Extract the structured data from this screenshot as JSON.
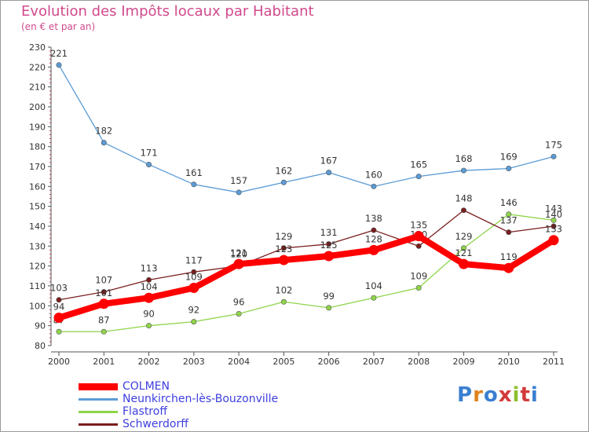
{
  "title": "Evolution des Impôts locaux par Habitant",
  "subtitle": "(en € et par an)",
  "logo_text": "Proxiti",
  "chart_data": {
    "type": "line",
    "title": "Evolution des Impôts locaux par Habitant",
    "subtitle": "(en € et par an)",
    "xlabel": "",
    "ylabel": "",
    "ylim": [
      80,
      230
    ],
    "yticks": [
      80,
      90,
      100,
      110,
      120,
      130,
      140,
      150,
      160,
      170,
      180,
      190,
      200,
      210,
      220,
      230
    ],
    "grid": false,
    "legend_position": "bottom-left",
    "x": [
      "2000",
      "2001",
      "2002",
      "2003",
      "2004",
      "2005",
      "2006",
      "2007",
      "2008",
      "2009",
      "2010",
      "2011"
    ],
    "series": [
      {
        "name": "COLMEN",
        "color": "#ff0000",
        "values": [
          94,
          101,
          104,
          109,
          121,
          123,
          125,
          128,
          135,
          121,
          119,
          133
        ]
      },
      {
        "name": "Neunkirchen-lès-Bouzonville",
        "color": "#5b9bd5",
        "values": [
          221,
          182,
          171,
          161,
          157,
          162,
          167,
          160,
          165,
          168,
          169,
          175
        ]
      },
      {
        "name": "Flastroff",
        "color": "#8fd44a",
        "values": [
          87,
          87,
          90,
          92,
          96,
          102,
          99,
          104,
          109,
          129,
          146,
          143
        ]
      },
      {
        "name": "Schwerdorff",
        "color": "#7a1e1e",
        "values": [
          103,
          107,
          113,
          117,
          120,
          129,
          131,
          138,
          130,
          148,
          137,
          140
        ]
      }
    ]
  }
}
